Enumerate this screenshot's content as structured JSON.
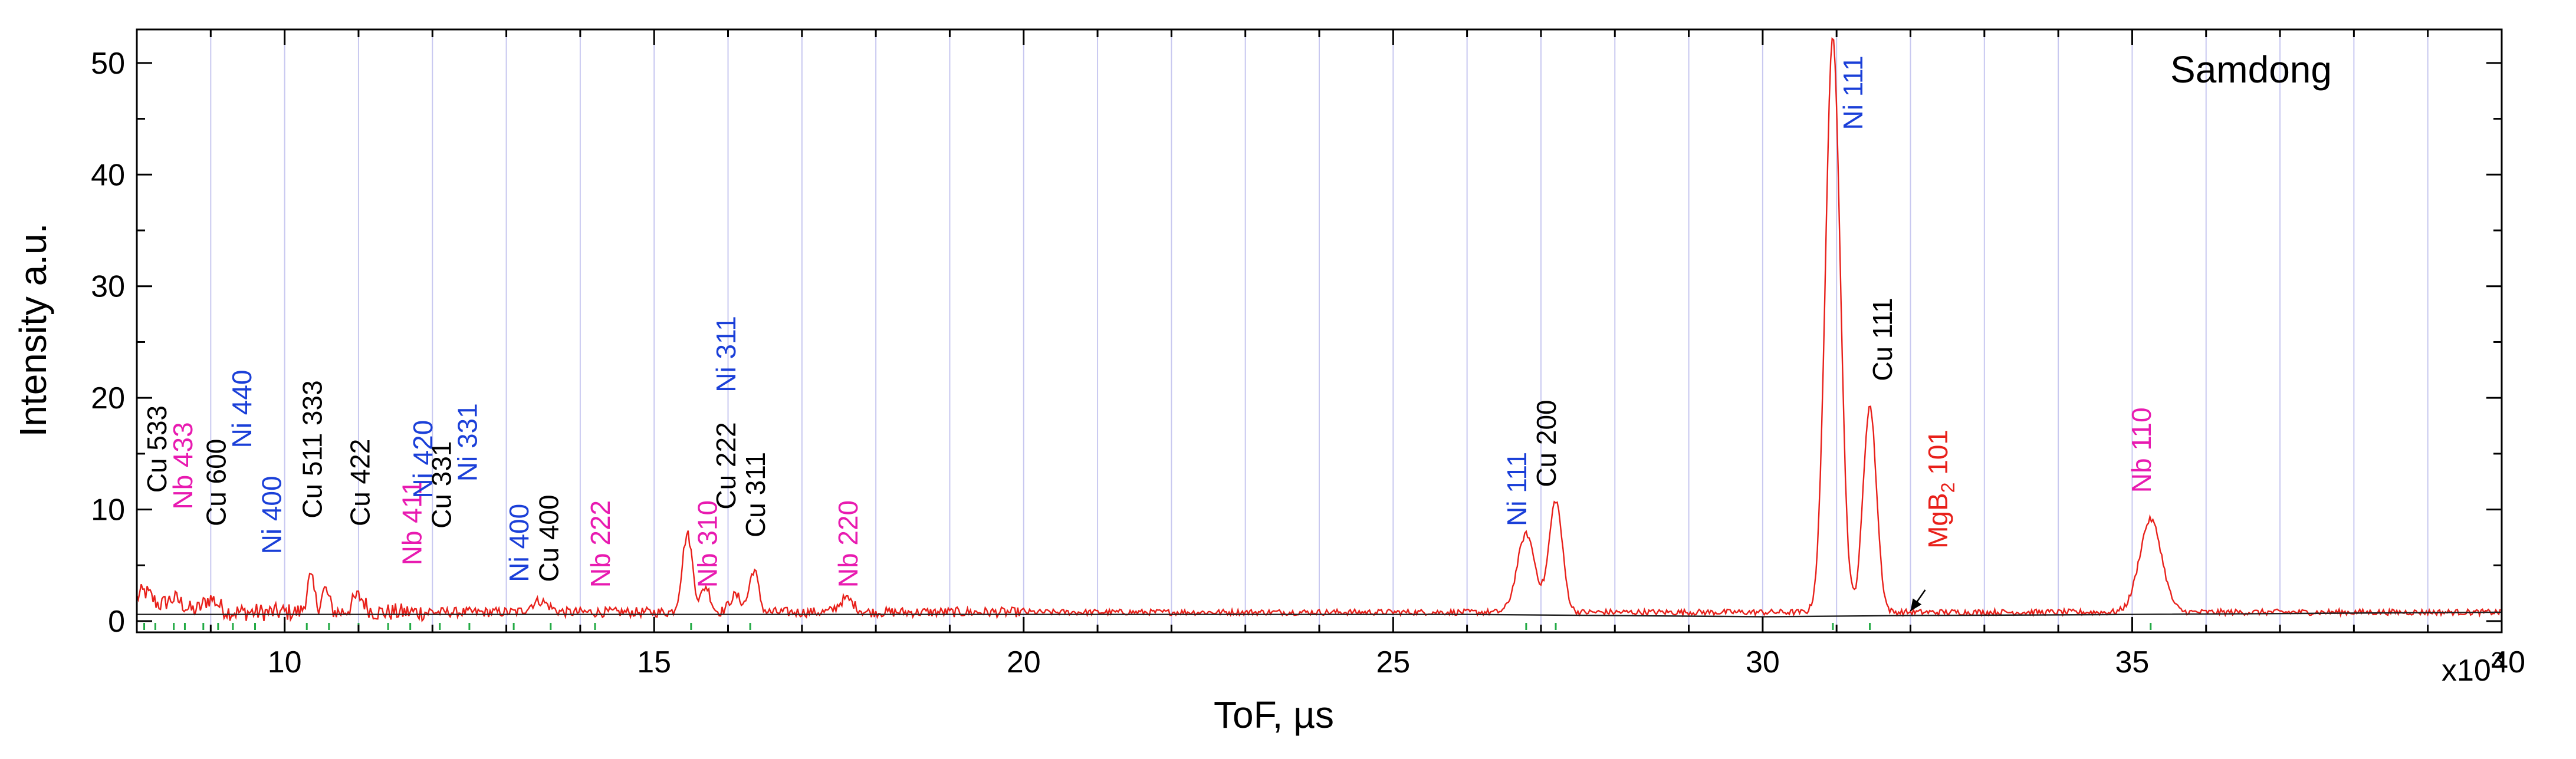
{
  "chart_data": {
    "type": "line",
    "title": "",
    "panel_label": "Samdong",
    "xlabel": "ToF,  µs",
    "ylabel": "Intensity a.u.",
    "x_multiplier": "x10",
    "x_multiplier_exp": "3",
    "xlim": [
      8,
      40
    ],
    "ylim": [
      -1,
      53
    ],
    "x_ticks": [
      10,
      15,
      20,
      25,
      30,
      35,
      40
    ],
    "x_tick_labels": [
      "10",
      "15",
      "20",
      "25",
      "30",
      "35",
      "40"
    ],
    "y_ticks": [
      0,
      10,
      20,
      30,
      40,
      50
    ],
    "y_tick_labels": [
      "0",
      "10",
      "20",
      "30",
      "40",
      "50"
    ],
    "grid": true,
    "series": [
      {
        "color": "#e8201a",
        "baseline": 0.8,
        "noise": 0.45,
        "x_step": 0.02,
        "peaks": [
          {
            "center": 8.1,
            "height": 1.8,
            "width": 0.12
          },
          {
            "center": 8.5,
            "height": 1.2,
            "width": 0.12
          },
          {
            "center": 9.0,
            "height": 1.2,
            "width": 0.1
          },
          {
            "center": 10.35,
            "height": 3.0,
            "width": 0.05
          },
          {
            "center": 10.55,
            "height": 2.0,
            "width": 0.05
          },
          {
            "center": 11.0,
            "height": 1.4,
            "width": 0.08
          },
          {
            "center": 13.45,
            "height": 1.0,
            "width": 0.12
          },
          {
            "center": 15.45,
            "height": 7.0,
            "width": 0.07
          },
          {
            "center": 15.7,
            "height": 2.3,
            "width": 0.06
          },
          {
            "center": 16.1,
            "height": 1.5,
            "width": 0.08
          },
          {
            "center": 16.35,
            "height": 3.8,
            "width": 0.06
          },
          {
            "center": 17.6,
            "height": 1.2,
            "width": 0.1
          },
          {
            "center": 26.8,
            "height": 7.0,
            "width": 0.12
          },
          {
            "center": 27.2,
            "height": 10.0,
            "width": 0.09
          },
          {
            "center": 30.95,
            "height": 51.5,
            "width": 0.1
          },
          {
            "center": 31.45,
            "height": 18.5,
            "width": 0.09
          },
          {
            "center": 35.25,
            "height": 8.3,
            "width": 0.15
          }
        ]
      },
      {
        "color": "#222222",
        "points": [
          [
            8,
            0.6
          ],
          [
            26,
            0.6
          ],
          [
            30,
            0.4
          ],
          [
            32,
            0.5
          ],
          [
            35,
            0.6
          ],
          [
            40,
            0.8
          ]
        ]
      }
    ],
    "reflection_ticks": [
      {
        "color": "#22aa44",
        "positions": [
          8.1,
          8.25,
          8.5,
          8.65,
          8.9,
          9.1,
          9.3,
          9.6,
          10.0,
          10.3,
          10.6,
          11.0,
          11.4,
          11.7,
          12.1,
          12.5,
          13.1,
          13.6,
          14.2,
          15.5,
          16.3,
          26.8,
          27.2,
          30.95,
          31.45,
          35.25
        ]
      }
    ],
    "annotations": [
      {
        "text": "Cu 533",
        "x": 8.4,
        "y": 11.5,
        "color": "#000000"
      },
      {
        "text": "Nb 433",
        "x": 8.75,
        "y": 10.0,
        "color": "#e81ab0",
        "small": true
      },
      {
        "text": "Cu 600",
        "x": 9.2,
        "y": 8.5,
        "color": "#000000"
      },
      {
        "text": "Ni 440",
        "x": 9.55,
        "y": 15.5,
        "color": "#1a3fd8"
      },
      {
        "text": "Ni 400",
        "x": 9.95,
        "y": 6.0,
        "color": "#1a3fd8"
      },
      {
        "text": "Cu 511 333",
        "x": 10.5,
        "y": 9.2,
        "color": "#000000"
      },
      {
        "text": "Cu 422",
        "x": 11.15,
        "y": 8.5,
        "color": "#000000"
      },
      {
        "text": "Nb 411",
        "x": 11.85,
        "y": 5.0,
        "color": "#e81ab0",
        "small": true
      },
      {
        "text": "Ni 420",
        "x": 12.0,
        "y": 11.0,
        "color": "#1a3fd8",
        "small": true
      },
      {
        "text": "Cu 331",
        "x": 12.25,
        "y": 8.3,
        "color": "#000000",
        "small": true
      },
      {
        "text": "Ni 331",
        "x": 12.6,
        "y": 12.5,
        "color": "#1a3fd8",
        "small": true
      },
      {
        "text": "Ni 400",
        "x": 13.3,
        "y": 3.5,
        "color": "#1a3fd8"
      },
      {
        "text": "Cu 400",
        "x": 13.7,
        "y": 3.5,
        "color": "#000000"
      },
      {
        "text": "Nb 222",
        "x": 14.4,
        "y": 3.0,
        "color": "#e81ab0"
      },
      {
        "text": "Nb 310",
        "x": 15.85,
        "y": 3.0,
        "color": "#e81ab0"
      },
      {
        "text": "Cu 222",
        "x": 16.1,
        "y": 10.0,
        "color": "#000000"
      },
      {
        "text": "Ni 311",
        "x": 16.1,
        "y": 20.5,
        "color": "#1a3fd8"
      },
      {
        "text": "Cu 311",
        "x": 16.5,
        "y": 7.5,
        "color": "#000000"
      },
      {
        "text": "Nb 220",
        "x": 17.75,
        "y": 3.0,
        "color": "#e81ab0"
      },
      {
        "text": "Ni 111",
        "x": 26.8,
        "y": 8.5,
        "color": "#1a3fd8"
      },
      {
        "text": "Cu 200",
        "x": 27.2,
        "y": 12.0,
        "color": "#000000"
      },
      {
        "text": "Ni 111",
        "x": 31.35,
        "y": 44.0,
        "color": "#1a3fd8"
      },
      {
        "text": "Cu 111",
        "x": 31.75,
        "y": 21.5,
        "color": "#000000"
      },
      {
        "text": "MgB",
        "sub": "2",
        "tail": " 101",
        "x": 32.5,
        "y": 6.5,
        "color": "#e8201a"
      },
      {
        "text": "Nb 110",
        "x": 35.25,
        "y": 11.5,
        "color": "#e81ab0"
      }
    ],
    "arrows": [
      {
        "from": [
          32.2,
          2.8
        ],
        "to": [
          32.0,
          0.9
        ],
        "color": "#000000"
      }
    ]
  }
}
